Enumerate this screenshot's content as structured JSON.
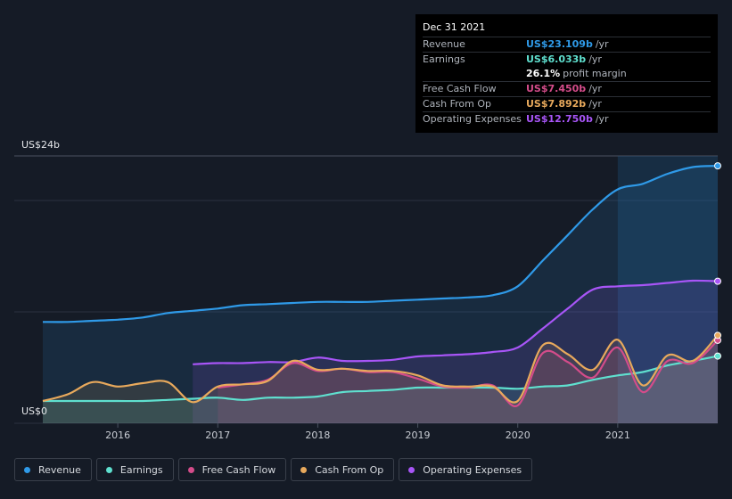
{
  "tooltip": {
    "date": "Dec 31 2021",
    "rows": [
      {
        "label": "Revenue",
        "value": "US$23.109b",
        "unit": "/yr",
        "color": "#2f9ae8"
      },
      {
        "label": "Earnings",
        "value": "US$6.033b",
        "unit": "/yr",
        "color": "#5fe0cf"
      },
      {
        "label": "",
        "value": "26.1%",
        "unit": "profit margin",
        "color": "#ffffff"
      },
      {
        "label": "Free Cash Flow",
        "value": "US$7.450b",
        "unit": "/yr",
        "color": "#d44c8a"
      },
      {
        "label": "Cash From Op",
        "value": "US$7.892b",
        "unit": "/yr",
        "color": "#e8a95c"
      },
      {
        "label": "Operating Expenses",
        "value": "US$12.750b",
        "unit": "/yr",
        "color": "#a855f7"
      }
    ]
  },
  "legend": [
    {
      "label": "Revenue",
      "color": "#2f9ae8"
    },
    {
      "label": "Earnings",
      "color": "#5fe0cf"
    },
    {
      "label": "Free Cash Flow",
      "color": "#d44c8a"
    },
    {
      "label": "Cash From Op",
      "color": "#e8a95c"
    },
    {
      "label": "Operating Expenses",
      "color": "#a855f7"
    }
  ],
  "chart_data": {
    "type": "area",
    "ylabel_top": "US$24b",
    "ylabel_bottom": "US$0",
    "ylim": [
      0,
      24
    ],
    "xlim": [
      2015.25,
      2022.0
    ],
    "xticks": [
      2016,
      2017,
      2018,
      2019,
      2020,
      2021
    ],
    "xtick_labels": [
      "2016",
      "2017",
      "2018",
      "2019",
      "2020",
      "2021"
    ],
    "gridlines": [
      0,
      10,
      20,
      24
    ],
    "highlight_from": 2021.0,
    "series": [
      {
        "name": "Revenue",
        "color": "#2f9ae8",
        "x": [
          2015.25,
          2015.5,
          2015.75,
          2016.0,
          2016.25,
          2016.5,
          2016.75,
          2017.0,
          2017.25,
          2017.5,
          2017.75,
          2018.0,
          2018.25,
          2018.5,
          2018.75,
          2019.0,
          2019.25,
          2019.5,
          2019.75,
          2020.0,
          2020.25,
          2020.5,
          2020.75,
          2021.0,
          2021.25,
          2021.5,
          2021.75,
          2022.0
        ],
        "y": [
          9.1,
          9.1,
          9.2,
          9.3,
          9.5,
          9.9,
          10.1,
          10.3,
          10.6,
          10.7,
          10.8,
          10.9,
          10.9,
          10.9,
          11.0,
          11.1,
          11.2,
          11.3,
          11.5,
          12.3,
          14.6,
          16.9,
          19.2,
          21.0,
          21.5,
          22.4,
          23.0,
          23.109
        ]
      },
      {
        "name": "Operating Expenses",
        "color": "#a855f7",
        "x": [
          2016.75,
          2017.0,
          2017.25,
          2017.5,
          2017.75,
          2018.0,
          2018.25,
          2018.5,
          2018.75,
          2019.0,
          2019.25,
          2019.5,
          2019.75,
          2020.0,
          2020.25,
          2020.5,
          2020.75,
          2021.0,
          2021.25,
          2021.5,
          2021.75,
          2022.0
        ],
        "y": [
          5.3,
          5.4,
          5.4,
          5.5,
          5.5,
          5.9,
          5.6,
          5.6,
          5.7,
          6.0,
          6.1,
          6.2,
          6.4,
          6.8,
          8.5,
          10.3,
          12.0,
          12.3,
          12.4,
          12.6,
          12.8,
          12.75
        ]
      },
      {
        "name": "Earnings",
        "color": "#5fe0cf",
        "x": [
          2015.25,
          2015.5,
          2015.75,
          2016.0,
          2016.25,
          2016.5,
          2016.75,
          2017.0,
          2017.25,
          2017.5,
          2017.75,
          2018.0,
          2018.25,
          2018.5,
          2018.75,
          2019.0,
          2019.25,
          2019.5,
          2019.75,
          2020.0,
          2020.25,
          2020.5,
          2020.75,
          2021.0,
          2021.25,
          2021.5,
          2021.75,
          2022.0
        ],
        "y": [
          2.0,
          2.0,
          2.0,
          2.0,
          2.0,
          2.1,
          2.2,
          2.3,
          2.1,
          2.3,
          2.3,
          2.4,
          2.8,
          2.9,
          3.0,
          3.2,
          3.2,
          3.2,
          3.2,
          3.1,
          3.3,
          3.4,
          3.9,
          4.3,
          4.6,
          5.2,
          5.6,
          6.033
        ]
      },
      {
        "name": "Free Cash Flow",
        "color": "#d44c8a",
        "x": [
          2017.0,
          2017.25,
          2017.5,
          2017.75,
          2018.0,
          2018.25,
          2018.5,
          2018.75,
          2019.0,
          2019.25,
          2019.5,
          2019.75,
          2020.0,
          2020.25,
          2020.5,
          2020.75,
          2021.0,
          2021.25,
          2021.5,
          2021.75,
          2022.0
        ],
        "y": [
          3.2,
          3.5,
          3.9,
          5.4,
          4.7,
          4.9,
          4.6,
          4.6,
          4.0,
          3.3,
          3.2,
          3.4,
          1.6,
          6.3,
          5.5,
          4.1,
          6.8,
          2.8,
          5.6,
          5.4,
          7.45
        ]
      },
      {
        "name": "Cash From Op",
        "color": "#e8a95c",
        "x": [
          2015.25,
          2015.5,
          2015.75,
          2016.0,
          2016.25,
          2016.5,
          2016.75,
          2017.0,
          2017.25,
          2017.5,
          2017.75,
          2018.0,
          2018.25,
          2018.5,
          2018.75,
          2019.0,
          2019.25,
          2019.5,
          2019.75,
          2020.0,
          2020.25,
          2020.5,
          2020.75,
          2021.0,
          2021.25,
          2021.5,
          2021.75,
          2022.0
        ],
        "y": [
          2.0,
          2.6,
          3.7,
          3.3,
          3.6,
          3.7,
          1.9,
          3.3,
          3.5,
          3.8,
          5.6,
          4.8,
          4.9,
          4.7,
          4.7,
          4.3,
          3.4,
          3.3,
          3.3,
          2.0,
          7.0,
          6.2,
          4.8,
          7.5,
          3.4,
          6.1,
          5.6,
          7.892
        ]
      }
    ]
  }
}
